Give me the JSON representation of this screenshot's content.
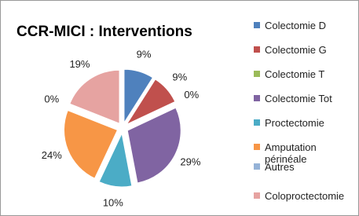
{
  "chart_data": {
    "type": "pie",
    "title": "CCR-MICI : Interventions",
    "categories": [
      "Colectomie D",
      "Colectomie G",
      "Colectomie T",
      "Colectomie Tot",
      "Proctectomie",
      "Amputation périnéale",
      "Autres",
      "Coloproctectomie"
    ],
    "values": [
      9,
      9,
      0,
      29,
      10,
      24,
      0,
      19
    ],
    "value_labels": [
      "9%",
      "9%",
      "0%",
      "29%",
      "10%",
      "24%",
      "0%",
      "19%"
    ],
    "colors": [
      "#4f81bd",
      "#c0504d",
      "#9bbb59",
      "#8064a2",
      "#4bacc6",
      "#f79646",
      "#95b3d7",
      "#e6a3a1"
    ],
    "legend": "right"
  }
}
